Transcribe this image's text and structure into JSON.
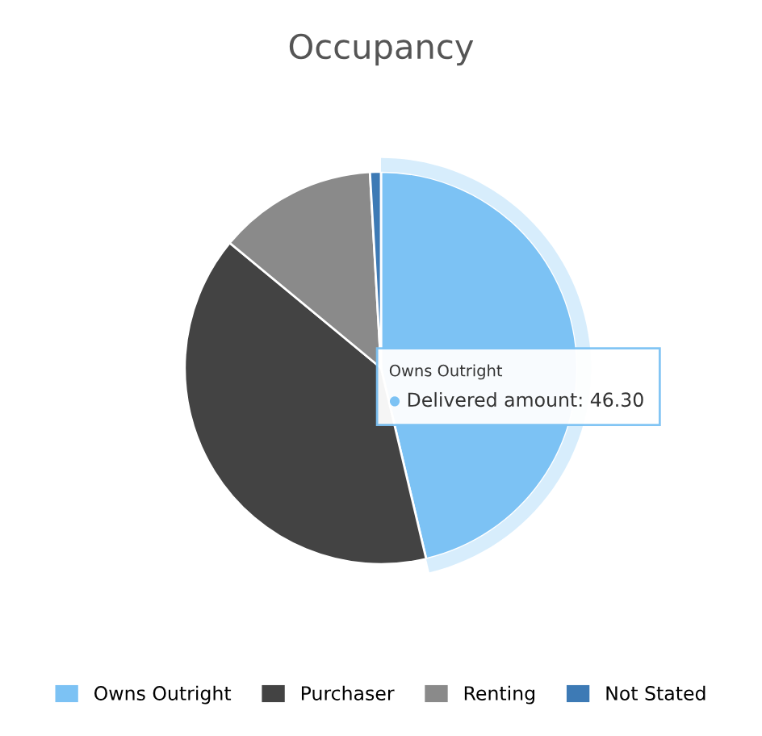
{
  "chart_data": {
    "type": "pie",
    "title": "Occupancy",
    "categories": [
      "Owns Outright",
      "Purchaser",
      "Renting",
      "Not Stated"
    ],
    "values": [
      46.3,
      39.7,
      13.1,
      0.9
    ],
    "colors": [
      "#7cc2f4",
      "#434343",
      "#8a8a8a",
      "#3d7ab5"
    ],
    "legend": "bottom",
    "annotations": [
      "Owns Outright",
      "Delivered amount: 46.30"
    ]
  }
}
